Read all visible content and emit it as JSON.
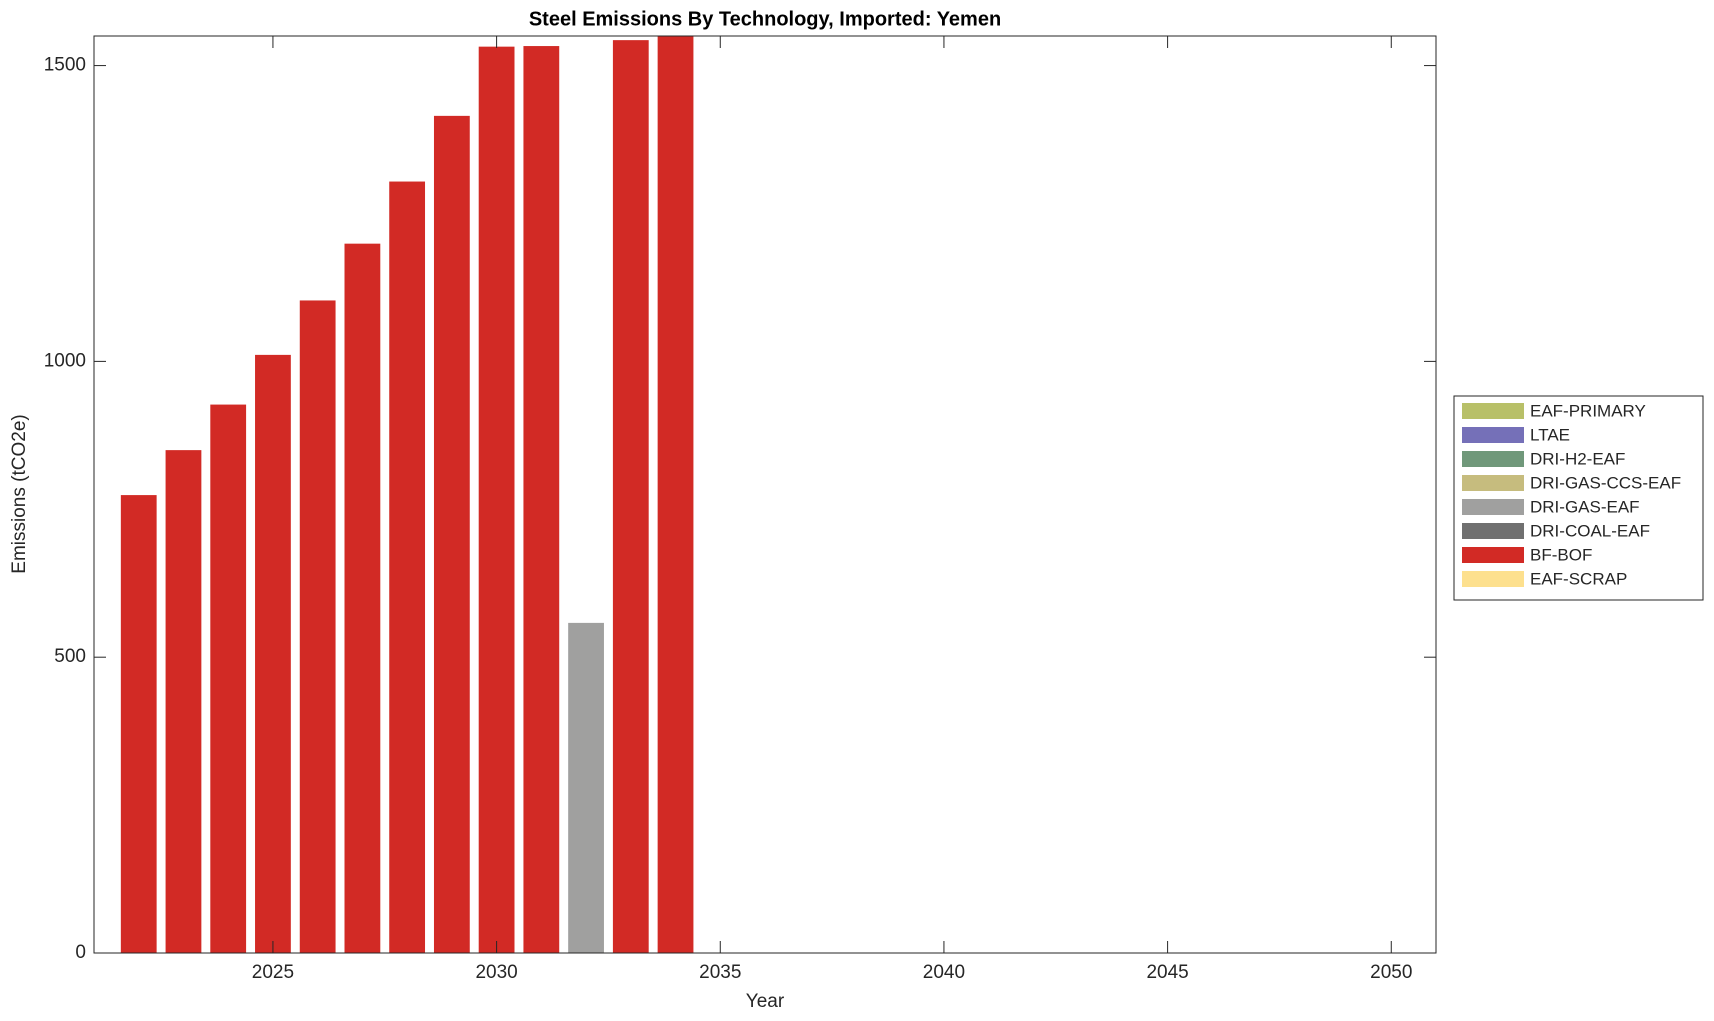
{
  "chart_data": {
    "type": "bar",
    "stacked": true,
    "title": "Steel Emissions By Technology, Imported: Yemen",
    "x_label": "Year",
    "y_label": "Emissions (tCO2e)",
    "x": [
      2022,
      2023,
      2024,
      2025,
      2026,
      2027,
      2028,
      2029,
      2030,
      2031,
      2032,
      2033,
      2034
    ],
    "xlim": [
      2021,
      2051
    ],
    "xticks": [
      2025,
      2030,
      2035,
      2040,
      2045,
      2050
    ],
    "ylim": [
      0,
      1550
    ],
    "yticks": [
      0,
      500,
      1000,
      1500
    ],
    "legend": "right",
    "series": [
      {
        "name": "EAF-PRIMARY",
        "color": "#b8c068",
        "values": [
          0,
          0,
          0,
          0,
          0,
          0,
          0,
          0,
          0,
          0,
          0,
          0,
          0
        ]
      },
      {
        "name": "LTAE",
        "color": "#7570b8",
        "values": [
          0,
          0,
          0,
          0,
          0,
          0,
          0,
          0,
          0,
          0,
          0,
          0,
          0
        ]
      },
      {
        "name": "DRI-H2-EAF",
        "color": "#70987a",
        "values": [
          0,
          0,
          0,
          0,
          0,
          0,
          0,
          0,
          0,
          0,
          0,
          0,
          0
        ]
      },
      {
        "name": "DRI-GAS-CCS-EAF",
        "color": "#c6bc7e",
        "values": [
          0,
          0,
          0,
          0,
          0,
          0,
          0,
          0,
          0,
          0,
          0,
          0,
          0
        ]
      },
      {
        "name": "DRI-GAS-EAF",
        "color": "#a0a09f",
        "values": [
          0,
          0,
          0,
          0,
          0,
          0,
          0,
          0,
          0,
          0,
          558,
          0,
          0
        ]
      },
      {
        "name": "DRI-COAL-EAF",
        "color": "#707070",
        "values": [
          0,
          0,
          0,
          0,
          0,
          0,
          0,
          0,
          0,
          0,
          0,
          0,
          0
        ]
      },
      {
        "name": "BF-BOF",
        "color": "#d22a25",
        "values": [
          774,
          850,
          927,
          1011,
          1103,
          1199,
          1304,
          1415,
          1532,
          1533,
          0,
          1543,
          1550
        ]
      },
      {
        "name": "EAF-SCRAP",
        "color": "#fde08e",
        "values": [
          0,
          0,
          0,
          0,
          0,
          0,
          0,
          0,
          0,
          0,
          0,
          0,
          0
        ]
      }
    ]
  }
}
